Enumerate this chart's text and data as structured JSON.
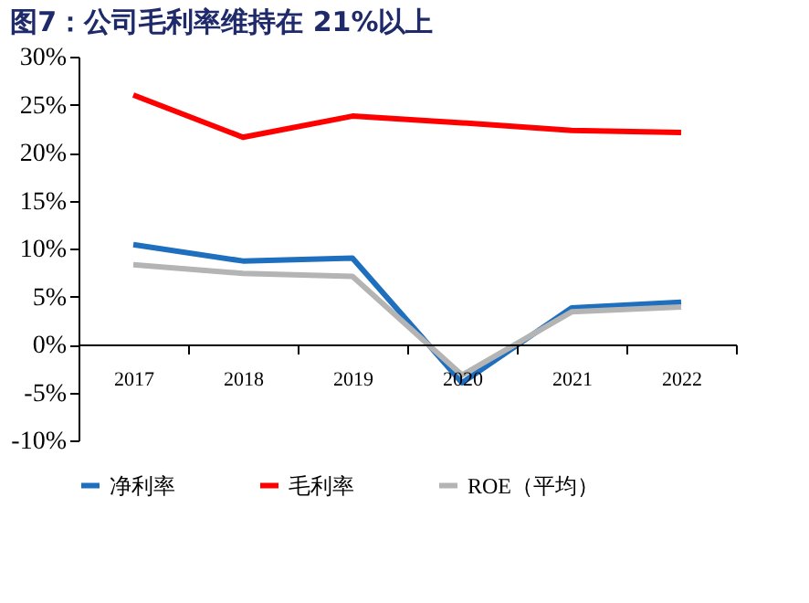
{
  "chart_data": {
    "type": "line",
    "title": "图7：公司毛利率维持在 21%以上",
    "categories": [
      "2017",
      "2018",
      "2019",
      "2020",
      "2021",
      "2022"
    ],
    "series": [
      {
        "name": "净利率",
        "color": "#1f6fbf",
        "values": [
          10.4,
          8.7,
          9.0,
          -4.0,
          3.8,
          4.4
        ]
      },
      {
        "name": "毛利率",
        "color": "#ff0000",
        "values": [
          26.0,
          21.6,
          23.8,
          23.1,
          22.3,
          22.1
        ]
      },
      {
        "name": "ROE（平均）",
        "color": "#b4b4b4",
        "values": [
          8.3,
          7.4,
          7.1,
          -3.2,
          3.4,
          3.9
        ]
      }
    ],
    "ylim": [
      -10,
      30
    ],
    "yticks": [
      {
        "value": -10,
        "label": "-10%"
      },
      {
        "value": -5,
        "label": "-5%"
      },
      {
        "value": 0,
        "label": "0%"
      },
      {
        "value": 5,
        "label": "5%"
      },
      {
        "value": 10,
        "label": "10%"
      },
      {
        "value": 15,
        "label": "15%"
      },
      {
        "value": 20,
        "label": "20%"
      },
      {
        "value": 25,
        "label": "25%"
      },
      {
        "value": 30,
        "label": "30%"
      }
    ],
    "grid": false,
    "legend": "bottom",
    "marker": "none",
    "line_style": "solid"
  }
}
